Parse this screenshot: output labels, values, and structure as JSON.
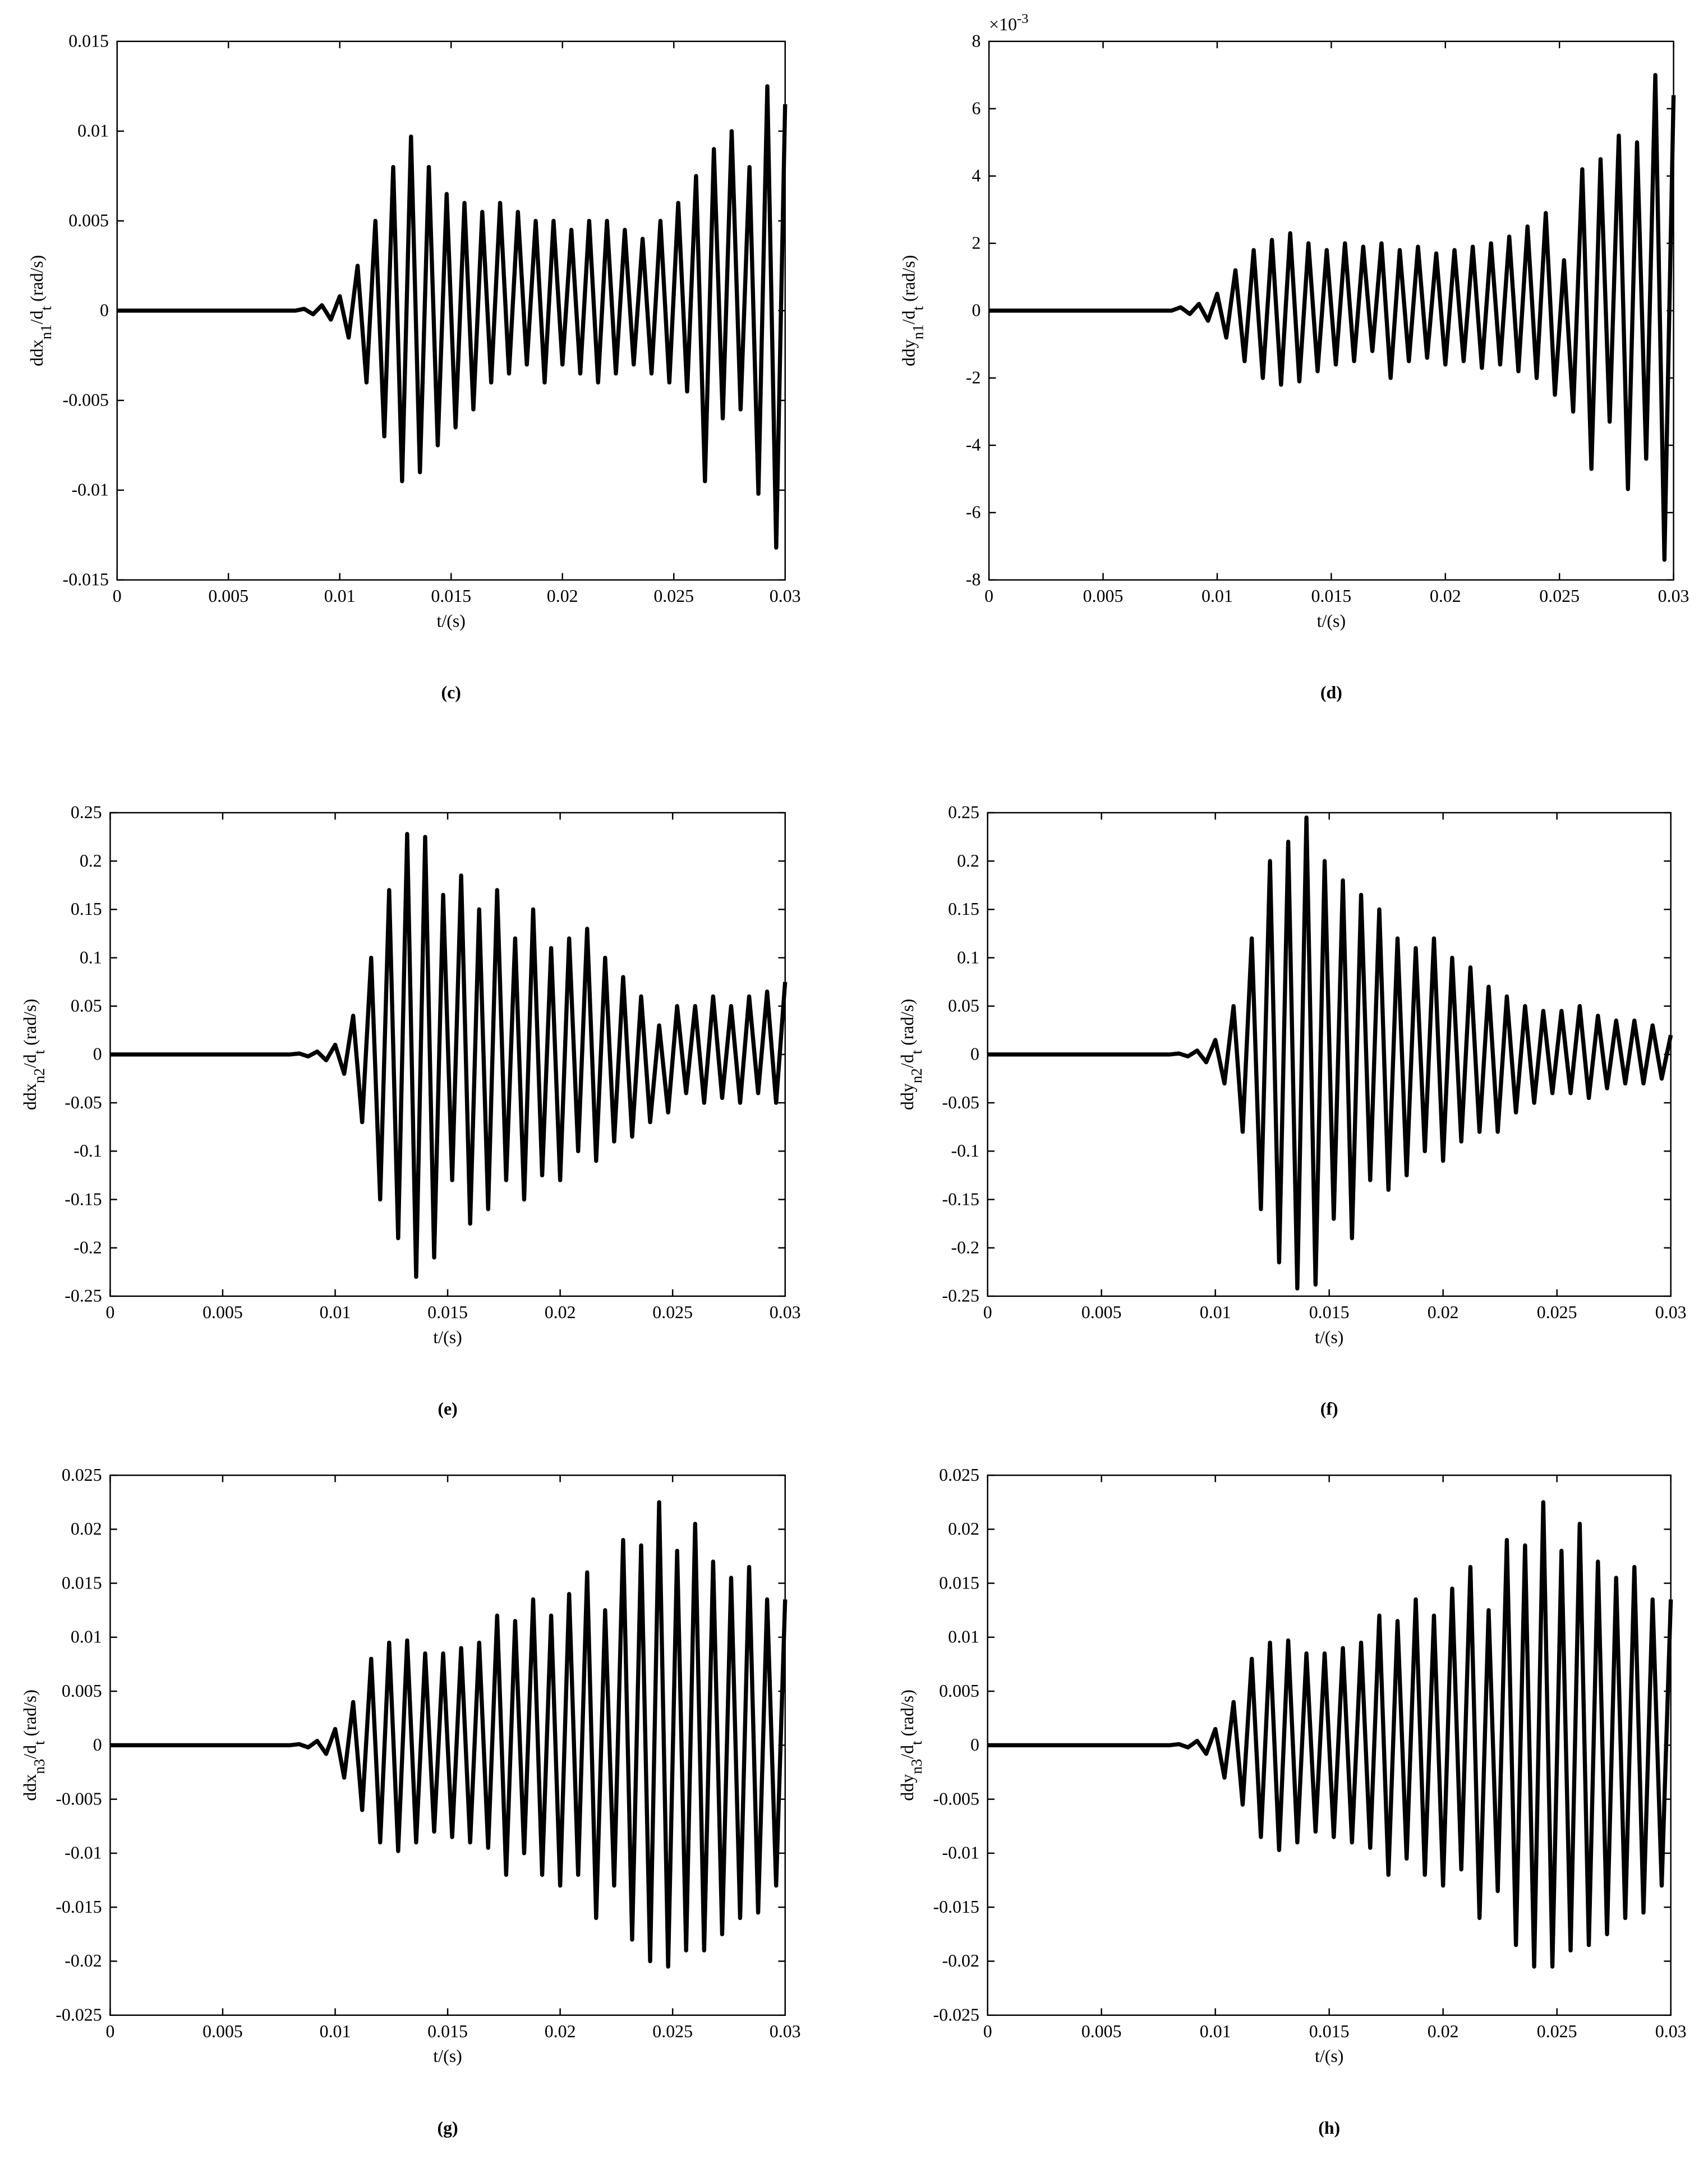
{
  "chart_data": [
    {
      "type": "line",
      "panel": "(c)",
      "xlabel": "t/(s)",
      "ylabel": [
        "ddx",
        "n1",
        "/d",
        "t",
        " (rad/s)"
      ],
      "color": "#000000",
      "xlim": [
        0,
        0.03
      ],
      "xticks": [
        0,
        0.005,
        0.01,
        0.015,
        0.02,
        0.025,
        0.03
      ],
      "ylim": [
        -0.015,
        0.015
      ],
      "yticks": [
        -0.015,
        -0.01,
        -0.005,
        0,
        0.005,
        0.01,
        0.015
      ],
      "x": [
        0,
        0.008,
        0.0084,
        0.0088,
        0.0092,
        0.0096,
        0.01,
        0.0104,
        0.0108,
        0.0112,
        0.0116,
        0.012,
        0.0124,
        0.0128,
        0.0132,
        0.0136,
        0.014,
        0.0144,
        0.0148,
        0.0152,
        0.0156,
        0.016,
        0.0164,
        0.0168,
        0.0172,
        0.0176,
        0.018,
        0.0184,
        0.0188,
        0.0192,
        0.0196,
        0.02,
        0.0204,
        0.0208,
        0.0212,
        0.0216,
        0.022,
        0.0224,
        0.0228,
        0.0232,
        0.0236,
        0.024,
        0.0244,
        0.0248,
        0.0252,
        0.0256,
        0.026,
        0.0264,
        0.0268,
        0.0272,
        0.0276,
        0.028,
        0.0284,
        0.0288,
        0.0292,
        0.0296,
        0.03
      ],
      "values": [
        0,
        0,
        0.0001,
        -0.0002,
        0.0003,
        -0.0005,
        0.0008,
        -0.0015,
        0.0025,
        -0.004,
        0.005,
        -0.007,
        0.008,
        -0.0095,
        0.0097,
        -0.009,
        0.008,
        -0.0075,
        0.0065,
        -0.0065,
        0.006,
        -0.0055,
        0.0055,
        -0.004,
        0.006,
        -0.0035,
        0.0055,
        -0.003,
        0.005,
        -0.004,
        0.005,
        -0.003,
        0.0045,
        -0.0035,
        0.005,
        -0.004,
        0.005,
        -0.0035,
        0.0045,
        -0.003,
        0.004,
        -0.0035,
        0.005,
        -0.004,
        0.006,
        -0.0045,
        0.0075,
        -0.0095,
        0.009,
        -0.006,
        0.01,
        -0.0055,
        0.008,
        -0.0102,
        0.0125,
        -0.0132,
        0.0115
      ]
    },
    {
      "type": "line",
      "panel": "(d)",
      "xlabel": "t/(s)",
      "ylabel": [
        "ddy",
        "n1",
        "/d",
        "t",
        " (rad/s)"
      ],
      "axis_multiplier": [
        "×10",
        "-3"
      ],
      "color": "#000000",
      "xlim": [
        0,
        0.03
      ],
      "xticks": [
        0,
        0.005,
        0.01,
        0.015,
        0.02,
        0.025,
        0.03
      ],
      "ylim": [
        -0.008,
        0.008
      ],
      "yticks": [
        {
          "value": -0.008,
          "label": "-8"
        },
        {
          "value": -0.006,
          "label": "-6"
        },
        {
          "value": -0.004,
          "label": "-4"
        },
        {
          "value": -0.002,
          "label": "-2"
        },
        0,
        {
          "value": 0.002,
          "label": "2"
        },
        {
          "value": 0.004,
          "label": "4"
        },
        {
          "value": 0.006,
          "label": "6"
        },
        {
          "value": 0.008,
          "label": "8"
        }
      ],
      "x": [
        0,
        0.008,
        0.0084,
        0.0088,
        0.0092,
        0.0096,
        0.01,
        0.0104,
        0.0108,
        0.0112,
        0.0116,
        0.012,
        0.0124,
        0.0128,
        0.0132,
        0.0136,
        0.014,
        0.0144,
        0.0148,
        0.0152,
        0.0156,
        0.016,
        0.0164,
        0.0168,
        0.0172,
        0.0176,
        0.018,
        0.0184,
        0.0188,
        0.0192,
        0.0196,
        0.02,
        0.0204,
        0.0208,
        0.0212,
        0.0216,
        0.022,
        0.0224,
        0.0228,
        0.0232,
        0.0236,
        0.024,
        0.0244,
        0.0248,
        0.0252,
        0.0256,
        0.026,
        0.0264,
        0.0268,
        0.0272,
        0.0276,
        0.028,
        0.0284,
        0.0288,
        0.0292,
        0.0296,
        0.03
      ],
      "values": [
        0,
        0,
        0.0001,
        -0.0001,
        0.0002,
        -0.0003,
        0.0005,
        -0.0008,
        0.0012,
        -0.0015,
        0.0018,
        -0.002,
        0.0021,
        -0.0022,
        0.0023,
        -0.0021,
        0.002,
        -0.0018,
        0.0018,
        -0.0016,
        0.002,
        -0.0015,
        0.0019,
        -0.0012,
        0.002,
        -0.002,
        0.0018,
        -0.0015,
        0.0019,
        -0.0014,
        0.0017,
        -0.0016,
        0.0018,
        -0.0015,
        0.0019,
        -0.0017,
        0.002,
        -0.0016,
        0.0022,
        -0.0018,
        0.0025,
        -0.002,
        0.0029,
        -0.0025,
        0.0015,
        -0.003,
        0.0042,
        -0.0047,
        0.0045,
        -0.0033,
        0.0052,
        -0.0053,
        0.005,
        -0.0044,
        0.007,
        -0.0074,
        0.0064
      ]
    },
    {
      "type": "line",
      "panel": "(e)",
      "xlabel": "t/(s)",
      "ylabel": [
        "ddx",
        "n2",
        "/d",
        "t",
        " (rad/s)"
      ],
      "color": "#000000",
      "xlim": [
        0,
        0.03
      ],
      "xticks": [
        0,
        0.005,
        0.01,
        0.015,
        0.02,
        0.025,
        0.03
      ],
      "ylim": [
        -0.25,
        0.25
      ],
      "yticks": [
        -0.25,
        -0.2,
        -0.15,
        -0.1,
        -0.05,
        0,
        0.05,
        0.1,
        0.15,
        0.2,
        0.25
      ],
      "x": [
        0,
        0.008,
        0.0084,
        0.0088,
        0.0092,
        0.0096,
        0.01,
        0.0104,
        0.0108,
        0.0112,
        0.0116,
        0.012,
        0.0124,
        0.0128,
        0.0132,
        0.0136,
        0.014,
        0.0144,
        0.0148,
        0.0152,
        0.0156,
        0.016,
        0.0164,
        0.0168,
        0.0172,
        0.0176,
        0.018,
        0.0184,
        0.0188,
        0.0192,
        0.0196,
        0.02,
        0.0204,
        0.0208,
        0.0212,
        0.0216,
        0.022,
        0.0224,
        0.0228,
        0.0232,
        0.0236,
        0.024,
        0.0244,
        0.0248,
        0.0252,
        0.0256,
        0.026,
        0.0264,
        0.0268,
        0.0272,
        0.0276,
        0.028,
        0.0284,
        0.0288,
        0.0292,
        0.0296,
        0.03
      ],
      "values": [
        0,
        0,
        0.001,
        -0.002,
        0.003,
        -0.006,
        0.01,
        -0.02,
        0.04,
        -0.07,
        0.1,
        -0.15,
        0.17,
        -0.19,
        0.228,
        -0.23,
        0.225,
        -0.21,
        0.165,
        -0.13,
        0.185,
        -0.175,
        0.15,
        -0.16,
        0.17,
        -0.13,
        0.12,
        -0.15,
        0.15,
        -0.125,
        0.11,
        -0.13,
        0.12,
        -0.1,
        0.13,
        -0.11,
        0.1,
        -0.09,
        0.08,
        -0.085,
        0.06,
        -0.07,
        0.03,
        -0.06,
        0.05,
        -0.04,
        0.05,
        -0.05,
        0.06,
        -0.045,
        0.05,
        -0.05,
        0.06,
        -0.04,
        0.065,
        -0.05,
        0.075
      ]
    },
    {
      "type": "line",
      "panel": "(f)",
      "xlabel": "t/(s)",
      "ylabel": [
        "ddy",
        "n2",
        "/d",
        "t",
        " (rad/s)"
      ],
      "color": "#000000",
      "xlim": [
        0,
        0.03
      ],
      "xticks": [
        0,
        0.005,
        0.01,
        0.015,
        0.02,
        0.025,
        0.03
      ],
      "ylim": [
        -0.25,
        0.25
      ],
      "yticks": [
        -0.25,
        -0.2,
        -0.15,
        -0.1,
        -0.05,
        0,
        0.05,
        0.1,
        0.15,
        0.2,
        0.25
      ],
      "x": [
        0,
        0.008,
        0.0084,
        0.0088,
        0.0092,
        0.0096,
        0.01,
        0.0104,
        0.0108,
        0.0112,
        0.0116,
        0.012,
        0.0124,
        0.0128,
        0.0132,
        0.0136,
        0.014,
        0.0144,
        0.0148,
        0.0152,
        0.0156,
        0.016,
        0.0164,
        0.0168,
        0.0172,
        0.0176,
        0.018,
        0.0184,
        0.0188,
        0.0192,
        0.0196,
        0.02,
        0.0204,
        0.0208,
        0.0212,
        0.0216,
        0.022,
        0.0224,
        0.0228,
        0.0232,
        0.0236,
        0.024,
        0.0244,
        0.0248,
        0.0252,
        0.0256,
        0.026,
        0.0264,
        0.0268,
        0.0272,
        0.0276,
        0.028,
        0.0284,
        0.0288,
        0.0292,
        0.0296,
        0.03
      ],
      "values": [
        0,
        0,
        0.001,
        -0.002,
        0.004,
        -0.008,
        0.015,
        -0.03,
        0.05,
        -0.08,
        0.12,
        -0.16,
        0.2,
        -0.215,
        0.22,
        -0.242,
        0.245,
        -0.238,
        0.2,
        -0.17,
        0.18,
        -0.19,
        0.165,
        -0.13,
        0.15,
        -0.14,
        0.12,
        -0.125,
        0.11,
        -0.1,
        0.12,
        -0.11,
        0.1,
        -0.09,
        0.09,
        -0.08,
        0.07,
        -0.08,
        0.06,
        -0.06,
        0.05,
        -0.05,
        0.045,
        -0.04,
        0.045,
        -0.04,
        0.05,
        -0.045,
        0.04,
        -0.035,
        0.035,
        -0.03,
        0.035,
        -0.03,
        0.03,
        -0.025,
        0.02
      ]
    },
    {
      "type": "line",
      "panel": "(g)",
      "xlabel": "t/(s)",
      "ylabel": [
        "ddx",
        "n3",
        "/d",
        "t",
        " (rad/s)"
      ],
      "color": "#000000",
      "xlim": [
        0,
        0.03
      ],
      "xticks": [
        0,
        0.005,
        0.01,
        0.015,
        0.02,
        0.025,
        0.03
      ],
      "ylim": [
        -0.025,
        0.025
      ],
      "yticks": [
        -0.025,
        -0.02,
        -0.015,
        -0.01,
        -0.005,
        0,
        0.005,
        0.01,
        0.015,
        0.02,
        0.025
      ],
      "x": [
        0,
        0.008,
        0.0084,
        0.0088,
        0.0092,
        0.0096,
        0.01,
        0.0104,
        0.0108,
        0.0112,
        0.0116,
        0.012,
        0.0124,
        0.0128,
        0.0132,
        0.0136,
        0.014,
        0.0144,
        0.0148,
        0.0152,
        0.0156,
        0.016,
        0.0164,
        0.0168,
        0.0172,
        0.0176,
        0.018,
        0.0184,
        0.0188,
        0.0192,
        0.0196,
        0.02,
        0.0204,
        0.0208,
        0.0212,
        0.0216,
        0.022,
        0.0224,
        0.0228,
        0.0232,
        0.0236,
        0.024,
        0.0244,
        0.0248,
        0.0252,
        0.0256,
        0.026,
        0.0264,
        0.0268,
        0.0272,
        0.0276,
        0.028,
        0.0284,
        0.0288,
        0.0292,
        0.0296,
        0.03
      ],
      "values": [
        0,
        0,
        0.0001,
        -0.0002,
        0.0004,
        -0.0008,
        0.0015,
        -0.003,
        0.004,
        -0.006,
        0.008,
        -0.009,
        0.0095,
        -0.0098,
        0.0097,
        -0.009,
        0.0085,
        -0.008,
        0.0085,
        -0.0085,
        0.009,
        -0.009,
        0.0095,
        -0.0095,
        0.012,
        -0.012,
        0.0115,
        -0.01,
        0.0135,
        -0.012,
        0.012,
        -0.013,
        0.014,
        -0.012,
        0.016,
        -0.016,
        0.0125,
        -0.013,
        0.019,
        -0.018,
        0.0185,
        -0.02,
        0.0225,
        -0.0205,
        0.018,
        -0.019,
        0.0205,
        -0.019,
        0.017,
        -0.0175,
        0.0155,
        -0.016,
        0.0165,
        -0.0155,
        0.0135,
        -0.013,
        0.0135
      ]
    },
    {
      "type": "line",
      "panel": "(h)",
      "xlabel": "t/(s)",
      "ylabel": [
        "ddy",
        "n3",
        "/d",
        "t",
        " (rad/s)"
      ],
      "color": "#000000",
      "xlim": [
        0,
        0.03
      ],
      "xticks": [
        0,
        0.005,
        0.01,
        0.015,
        0.02,
        0.025,
        0.03
      ],
      "ylim": [
        -0.025,
        0.025
      ],
      "yticks": [
        -0.025,
        -0.02,
        -0.015,
        -0.01,
        -0.005,
        0,
        0.005,
        0.01,
        0.015,
        0.02,
        0.025
      ],
      "x": [
        0,
        0.008,
        0.0084,
        0.0088,
        0.0092,
        0.0096,
        0.01,
        0.0104,
        0.0108,
        0.0112,
        0.0116,
        0.012,
        0.0124,
        0.0128,
        0.0132,
        0.0136,
        0.014,
        0.0144,
        0.0148,
        0.0152,
        0.0156,
        0.016,
        0.0164,
        0.0168,
        0.0172,
        0.0176,
        0.018,
        0.0184,
        0.0188,
        0.0192,
        0.0196,
        0.02,
        0.0204,
        0.0208,
        0.0212,
        0.0216,
        0.022,
        0.0224,
        0.0228,
        0.0232,
        0.0236,
        0.024,
        0.0244,
        0.0248,
        0.0252,
        0.0256,
        0.026,
        0.0264,
        0.0268,
        0.0272,
        0.0276,
        0.028,
        0.0284,
        0.0288,
        0.0292,
        0.0296,
        0.03
      ],
      "values": [
        0,
        0,
        0.0001,
        -0.0002,
        0.0004,
        -0.0008,
        0.0015,
        -0.003,
        0.004,
        -0.0055,
        0.008,
        -0.0085,
        0.0095,
        -0.0097,
        0.0097,
        -0.009,
        0.0085,
        -0.008,
        0.0085,
        -0.0085,
        0.009,
        -0.009,
        0.0095,
        -0.0095,
        0.012,
        -0.012,
        0.0115,
        -0.0105,
        0.0135,
        -0.012,
        0.012,
        -0.013,
        0.0145,
        -0.0115,
        0.0165,
        -0.016,
        0.0125,
        -0.0135,
        0.019,
        -0.0185,
        0.0185,
        -0.0205,
        0.0225,
        -0.0205,
        0.018,
        -0.019,
        0.0205,
        -0.0185,
        0.017,
        -0.0175,
        0.0155,
        -0.016,
        0.0165,
        -0.0155,
        0.0135,
        -0.013,
        0.0135
      ]
    }
  ]
}
